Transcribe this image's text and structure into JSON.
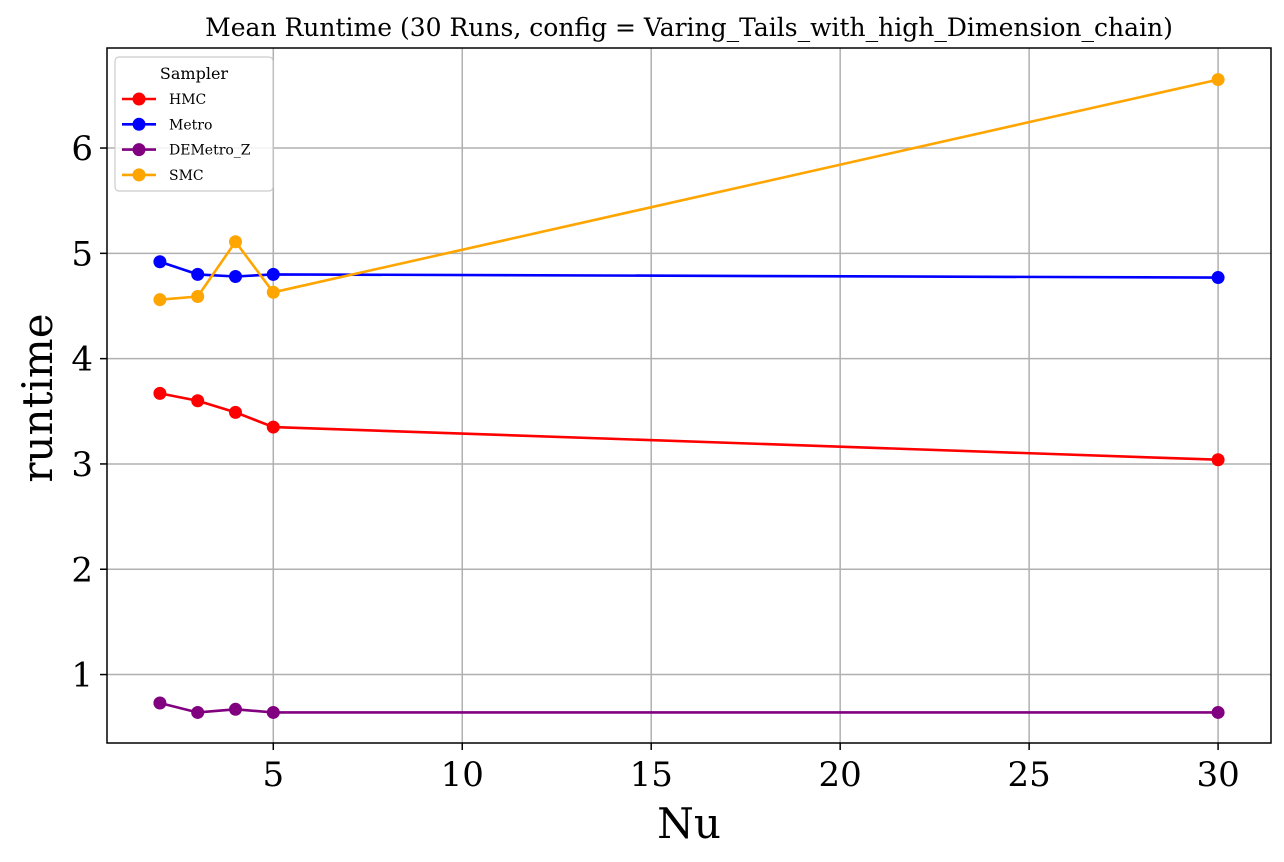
{
  "chart_data": {
    "type": "line",
    "title": "Mean Runtime (30 Runs, config = Varing_Tails_with_high_Dimension_chain)",
    "xlabel": "Nu",
    "ylabel": "runtime",
    "xlim": [
      0.6,
      31.4
    ],
    "ylim": [
      0.35,
      6.95
    ],
    "xticks": [
      5,
      10,
      15,
      20,
      25,
      30
    ],
    "yticks": [
      1,
      2,
      3,
      4,
      5,
      6
    ],
    "grid": true,
    "legend": {
      "title": "Sampler",
      "placement": "top-left"
    },
    "x": [
      2,
      3,
      4,
      5,
      30
    ],
    "series": [
      {
        "name": "HMC",
        "color": "#ff0000",
        "values": [
          3.67,
          3.6,
          3.49,
          3.35,
          3.04
        ]
      },
      {
        "name": "Metro",
        "color": "#0000ff",
        "values": [
          4.92,
          4.8,
          4.78,
          4.8,
          4.77
        ]
      },
      {
        "name": "DEMetro_Z",
        "color": "#800080",
        "values": [
          0.73,
          0.64,
          0.67,
          0.64,
          0.64
        ]
      },
      {
        "name": "SMC",
        "color": "#ffa500",
        "values": [
          4.56,
          4.59,
          5.11,
          4.63,
          6.65
        ]
      }
    ]
  }
}
